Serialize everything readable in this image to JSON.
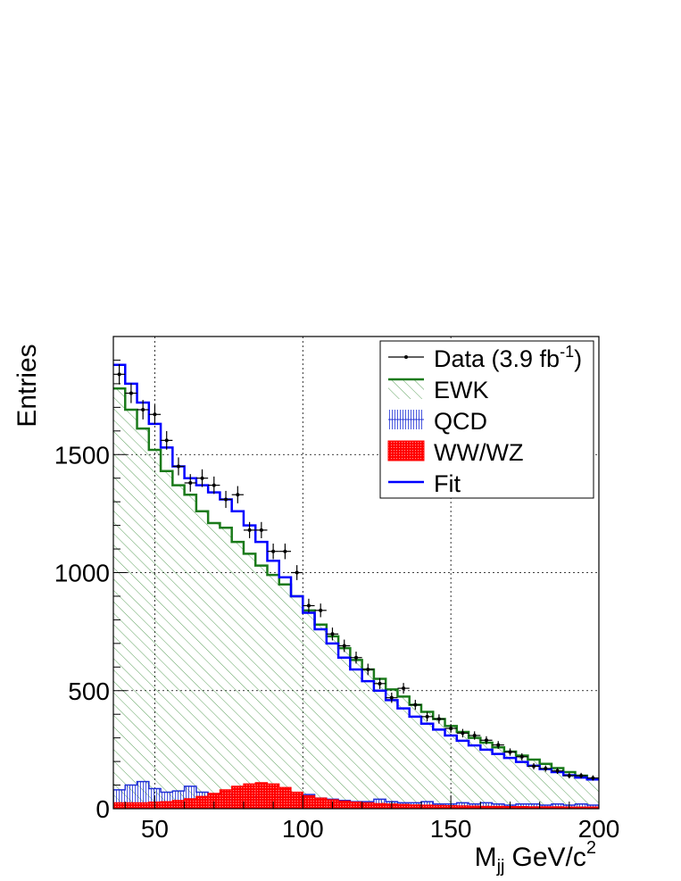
{
  "chart_data": {
    "type": "bar",
    "xlabel": "M",
    "xlabel_sub": "jj",
    "xlabel_unit": "GeV/c",
    "xlabel_unit_sup": "2",
    "ylabel": "Entries",
    "xlim": [
      36,
      200
    ],
    "ylim": [
      0,
      2000
    ],
    "bin_width": 4,
    "grid": true,
    "legend_position": "top-right",
    "x_ticks": [
      {
        "v": 50,
        "label": "50"
      },
      {
        "v": 100,
        "label": "100"
      },
      {
        "v": 150,
        "label": "150"
      },
      {
        "v": 200,
        "label": "200"
      }
    ],
    "y_ticks": [
      {
        "v": 0,
        "label": "0"
      },
      {
        "v": 500,
        "label": "500"
      },
      {
        "v": 1000,
        "label": "1000"
      },
      {
        "v": 1500,
        "label": "1500"
      }
    ],
    "legend": [
      {
        "key": "data",
        "label": "Data (3.9 fb",
        "sup": "-1",
        "suffix": ")"
      },
      {
        "key": "ewk",
        "label": "EWK"
      },
      {
        "key": "qcd",
        "label": "QCD"
      },
      {
        "key": "ww",
        "label": "WW/WZ"
      },
      {
        "key": "fit",
        "label": "Fit"
      }
    ],
    "colors": {
      "ewk": "#1a7a1a",
      "qcd": "#1f2fd6",
      "ww": "#ff0000",
      "fit": "#0000ff",
      "data": "#000000"
    },
    "bin_edges": [
      36,
      40,
      44,
      48,
      52,
      56,
      60,
      64,
      68,
      72,
      76,
      80,
      84,
      88,
      92,
      96,
      100,
      104,
      108,
      112,
      116,
      120,
      124,
      128,
      132,
      136,
      140,
      144,
      148,
      152,
      156,
      160,
      164,
      168,
      172,
      176,
      180,
      184,
      188,
      192,
      196,
      200
    ],
    "series": [
      {
        "name": "Fit",
        "key": "fit",
        "style": "step",
        "values": [
          1880,
          1800,
          1720,
          1630,
          1530,
          1450,
          1400,
          1370,
          1340,
          1310,
          1260,
          1200,
          1130,
          1050,
          980,
          900,
          830,
          760,
          700,
          640,
          590,
          540,
          500,
          460,
          425,
          390,
          360,
          335,
          310,
          288,
          268,
          250,
          232,
          215,
          198,
          182,
          168,
          155,
          142,
          132,
          124
        ]
      },
      {
        "name": "EWK",
        "key": "ewk",
        "style": "hatch",
        "values": [
          1780,
          1690,
          1610,
          1520,
          1430,
          1370,
          1330,
          1260,
          1210,
          1190,
          1130,
          1080,
          1030,
          990,
          950,
          900,
          840,
          780,
          730,
          680,
          630,
          590,
          550,
          505,
          475,
          440,
          410,
          380,
          350,
          325,
          300,
          280,
          260,
          242,
          225,
          208,
          190,
          172,
          155,
          140,
          125
        ]
      },
      {
        "name": "QCD",
        "key": "qcd",
        "style": "vline",
        "values": [
          80,
          100,
          115,
          85,
          70,
          75,
          95,
          70,
          60,
          65,
          55,
          50,
          55,
          45,
          50,
          55,
          60,
          45,
          40,
          35,
          30,
          30,
          40,
          30,
          25,
          25,
          30,
          20,
          20,
          25,
          20,
          25,
          20,
          15,
          20,
          20,
          15,
          20,
          15,
          20,
          15
        ]
      },
      {
        "name": "WW/WZ",
        "key": "ww",
        "style": "fill",
        "values": [
          25,
          25,
          25,
          28,
          30,
          35,
          42,
          52,
          65,
          80,
          95,
          105,
          110,
          105,
          90,
          70,
          55,
          45,
          38,
          32,
          28,
          25,
          22,
          20,
          18,
          16,
          15,
          14,
          13,
          12,
          11,
          10,
          10,
          9,
          9,
          8,
          8,
          8,
          7,
          7,
          7
        ]
      },
      {
        "name": "Data (3.9 fb-1)",
        "key": "data",
        "style": "points",
        "x": [
          38,
          42,
          46,
          50,
          54,
          58,
          62,
          66,
          70,
          74,
          78,
          82,
          86,
          90,
          94,
          98,
          102,
          106,
          110,
          114,
          118,
          122,
          126,
          130,
          134,
          138,
          142,
          146,
          150,
          154,
          158,
          162,
          166,
          170,
          174,
          178,
          182,
          186,
          190,
          194,
          198
        ],
        "values": [
          1840,
          1760,
          1690,
          1670,
          1560,
          1450,
          1380,
          1400,
          1370,
          1310,
          1330,
          1180,
          1180,
          1090,
          1090,
          1000,
          860,
          840,
          740,
          690,
          640,
          590,
          530,
          470,
          510,
          440,
          390,
          380,
          340,
          320,
          310,
          290,
          270,
          240,
          220,
          180,
          170,
          160,
          140,
          140,
          130
        ]
      }
    ]
  }
}
